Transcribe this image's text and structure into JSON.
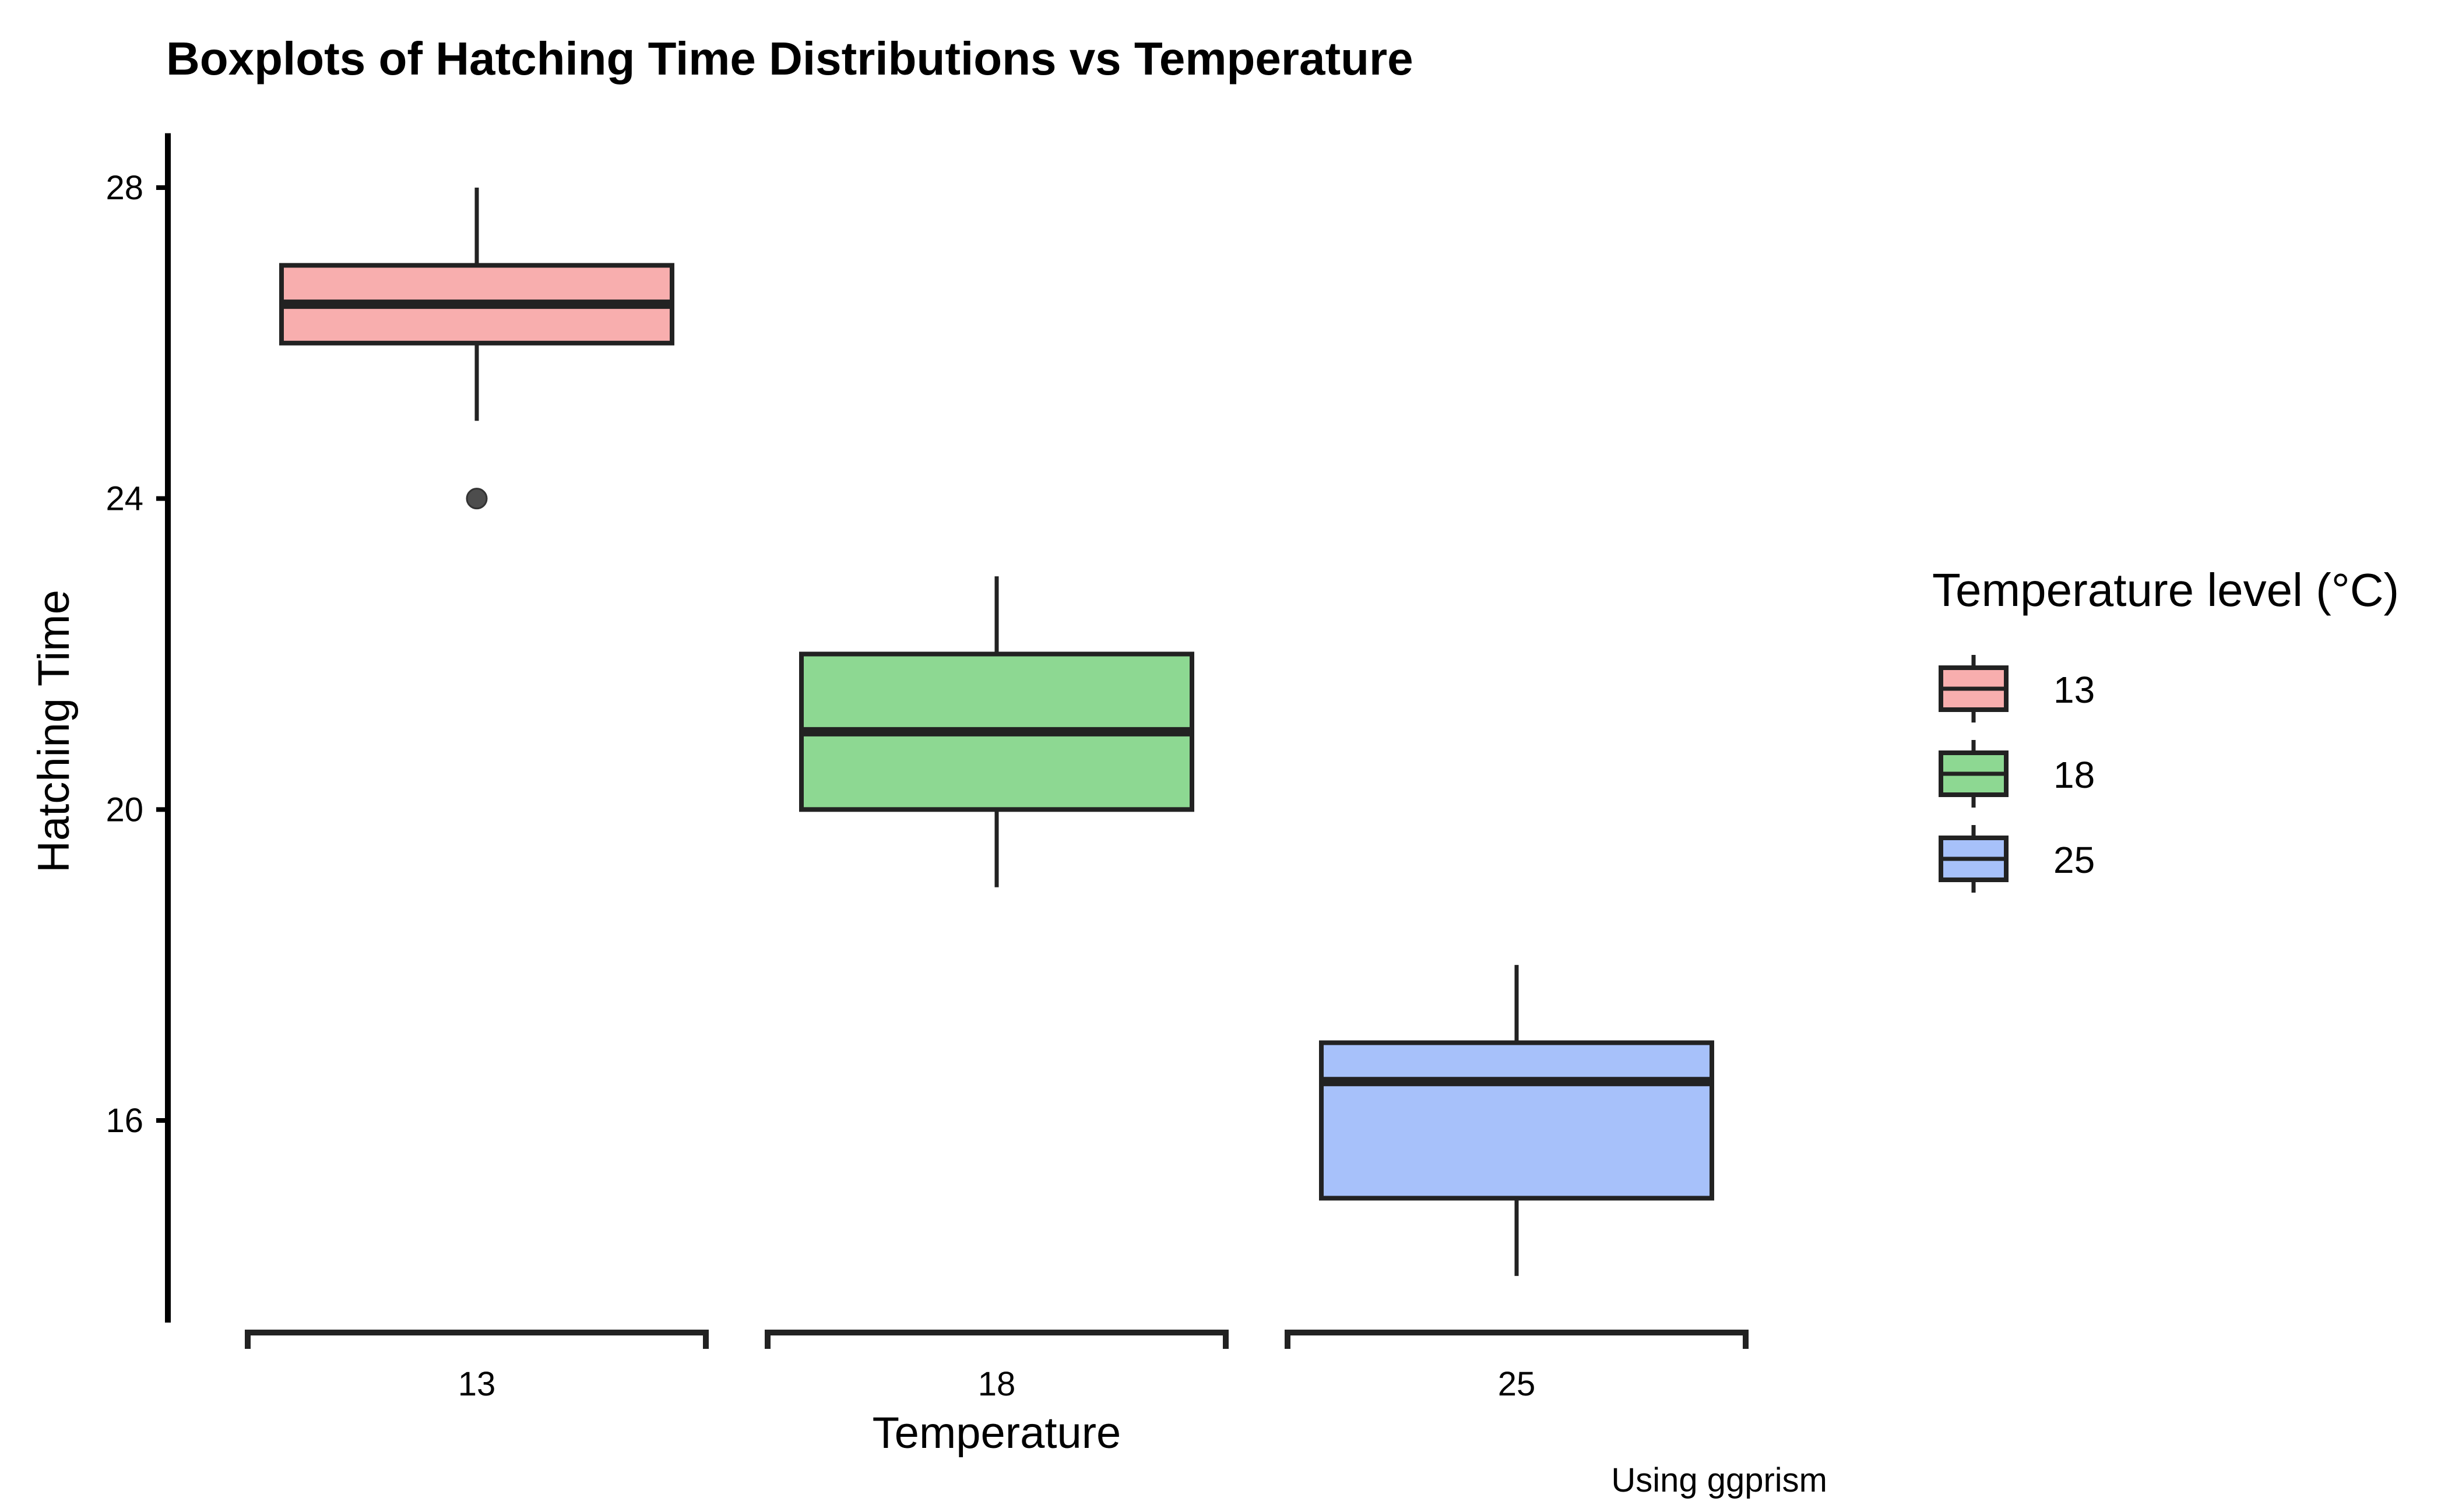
{
  "chart_data": {
    "type": "boxplot",
    "title": "Boxplots of Hatching Time Distributions vs Temperature",
    "xlabel": "Temperature",
    "ylabel": "Hatching Time",
    "caption": "Using ggprism",
    "categories": [
      "13",
      "18",
      "25"
    ],
    "ylim": [
      13.4,
      28.7
    ],
    "yticks": [
      16,
      20,
      24,
      28
    ],
    "grid": false,
    "boxes": [
      {
        "category": "13",
        "whisker_low": 25,
        "q1": 26,
        "median": 26.5,
        "q3": 27,
        "whisker_high": 28,
        "outliers": [
          24
        ],
        "color": "#F8AEAE"
      },
      {
        "category": "18",
        "whisker_low": 19,
        "q1": 20,
        "median": 21,
        "q3": 22,
        "whisker_high": 23,
        "outliers": [],
        "color": "#8DD892"
      },
      {
        "category": "25",
        "whisker_low": 14,
        "q1": 15,
        "median": 16.5,
        "q3": 17,
        "whisker_high": 18,
        "outliers": [],
        "color": "#A7C1FA"
      }
    ],
    "legend": {
      "title": "Temperature level (°C)",
      "placement": "right",
      "entries": [
        "13",
        "18",
        "25"
      ]
    }
  }
}
